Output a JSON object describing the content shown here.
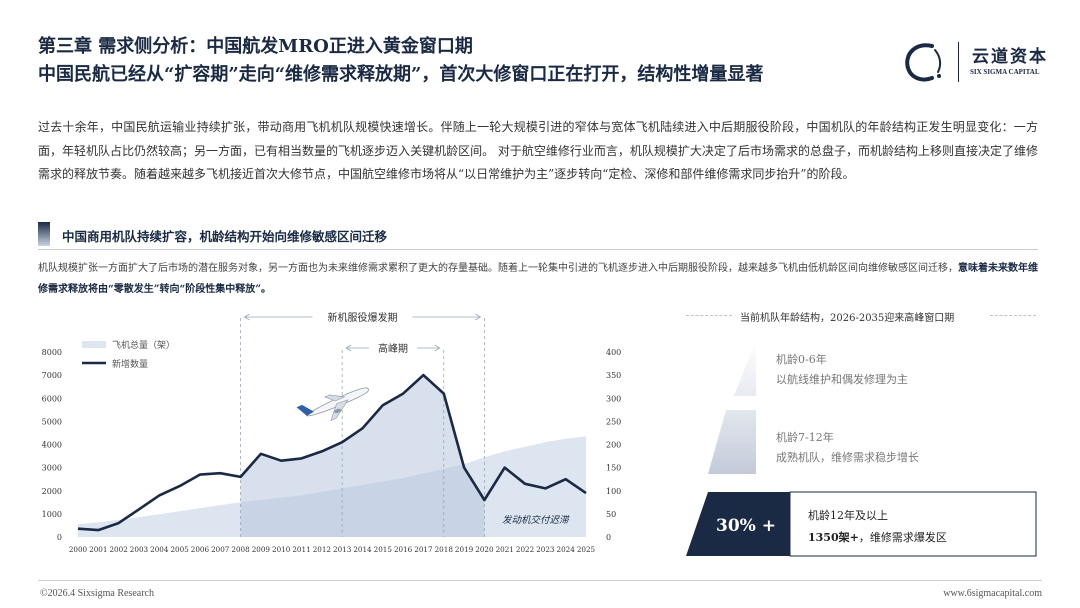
{
  "header": {
    "title": "第三章 需求侧分析：中国航发MRO正进入黄金窗口期",
    "subtitle": "中国民航已经从“扩容期”走向“维修需求释放期”，首次大修窗口正在打开，结构性增量显著"
  },
  "logo": {
    "cn": "云道资本",
    "en": "SIX SIGMA CAPITAL",
    "icon": "brush-circle-logo-icon"
  },
  "intro_paragraph": "过去十余年，中国民航运输业持续扩张，带动商用飞机机队规模快速增长。伴随上一轮大规模引进的窄体与宽体飞机陆续进入中后期服役阶段，中国机队的年龄结构正发生明显变化：一方面，年轻机队占比仍然较高；另一方面，已有相当数量的飞机逐步迈入关键机龄区间。 对于航空维修行业而言，机队规模扩大决定了后市场需求的总盘子，而机龄结构上移则直接决定了维修需求的释放节奏。随着越来越多飞机接近首次大修节点，中国航空维修市场将从“以日常维护为主”逐步转向“定检、深修和部件维修需求同步抬升”的阶段。",
  "section": {
    "title": "中国商用机队持续扩容，机龄结构开始向维修敏感区间迁移",
    "body_plain": "机队规模扩张一方面扩大了后市场的潜在服务对象，另一方面也为未来维修需求累积了更大的存量基础。随着上一轮集中引进的飞机逐步进入中后期服役阶段，越来越多飞机由低机龄区间向维修敏感区间迁移，",
    "body_bold": "意味着未来数年维修需求释放将由“零散发生”转向“阶段性集中释放”。"
  },
  "chart_data": {
    "type": "area",
    "categories": [
      "2000",
      "2001",
      "2002",
      "2003",
      "2004",
      "2005",
      "2006",
      "2007",
      "2008",
      "2009",
      "2010",
      "2011",
      "2012",
      "2013",
      "2014",
      "2015",
      "2016",
      "2017",
      "2018",
      "2019",
      "2020",
      "2021",
      "2022",
      "2023",
      "2024",
      "2025"
    ],
    "series": [
      {
        "name": "飞机总量（架）",
        "axis": "left",
        "style": "area",
        "color": "#dde5f0",
        "values": [
          550,
          640,
          740,
          860,
          980,
          1110,
          1250,
          1380,
          1500,
          1600,
          1700,
          1800,
          1950,
          2100,
          2250,
          2400,
          2550,
          2750,
          2950,
          3150,
          3450,
          3700,
          3900,
          4100,
          4250,
          4350
        ]
      },
      {
        "name": "新增数量",
        "axis": "right",
        "style": "line",
        "color": "#1a2a44",
        "values": [
          18,
          15,
          30,
          60,
          90,
          110,
          135,
          138,
          130,
          180,
          165,
          170,
          185,
          205,
          235,
          285,
          310,
          350,
          310,
          150,
          80,
          150,
          115,
          105,
          125,
          95
        ]
      }
    ],
    "y_left": {
      "min": 0,
      "max": 8000,
      "ticks": [
        0,
        1000,
        2000,
        3000,
        4000,
        5000,
        6000,
        7000,
        8000
      ]
    },
    "y_right": {
      "min": 0,
      "max": 400,
      "ticks": [
        0,
        50,
        100,
        150,
        200,
        250,
        300,
        350,
        400
      ]
    },
    "legend_position": "top-left",
    "grid": false,
    "annotations": {
      "service_period": {
        "label": "新机服役爆发期",
        "from": "2008",
        "to": "2020"
      },
      "peak_period": {
        "label": "高峰期",
        "from": "2013",
        "to": "2018"
      },
      "delivery_delay": "发动机交付迟滞"
    },
    "plane_icon": "airplane-icon"
  },
  "age_structure": {
    "title": "当前机队年龄结构，2026-2035迎来高峰窗口期",
    "tiers": [
      {
        "label": "机龄0-6年",
        "desc": "以航线维护和偶发修理为主"
      },
      {
        "label": "机龄7-12年",
        "desc": "成熟机队，维修需求稳步增长"
      },
      {
        "label": "机龄12年及以上",
        "desc_bold": "1350架+",
        "desc": "，维修需求爆发区",
        "badge": "30% +"
      }
    ],
    "colors": {
      "tier1": "#eef0f4",
      "tier2": "#cbd2df",
      "tier3": "#1a2a44"
    }
  },
  "footer": {
    "copyright": "©2026.4 Sixsigma Research",
    "website": "www.6sigmacapital.com"
  }
}
